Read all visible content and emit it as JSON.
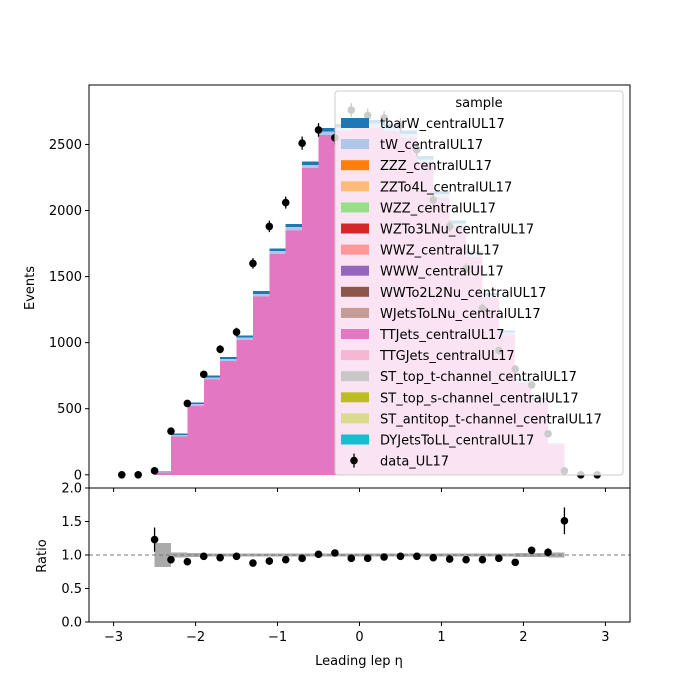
{
  "chart_data": {
    "type": "bar",
    "bin_edges": [
      -2.5,
      -2.3,
      -2.1,
      -1.9,
      -1.7,
      -1.5,
      -1.3,
      -1.1,
      -0.9,
      -0.7,
      -0.5,
      -0.3,
      -0.1,
      0.1,
      0.3,
      0.5,
      0.7,
      0.9,
      1.1,
      1.3,
      1.5,
      1.7,
      1.9,
      2.1,
      2.3,
      2.5
    ],
    "series": [
      {
        "name": "DYJetsToLL_centralUL17",
        "color": "#17becf",
        "values": [
          0,
          0,
          0,
          0,
          0,
          0,
          0,
          0,
          0,
          0,
          0,
          0,
          0,
          0,
          0,
          0,
          0,
          0,
          0,
          0,
          0,
          0,
          0,
          0,
          0
        ]
      },
      {
        "name": "ST_antitop_t-channel_centralUL17",
        "color": "#dbdb8d",
        "values": [
          0,
          0,
          0,
          0,
          0,
          0,
          0,
          0,
          0,
          0,
          0,
          0,
          0,
          0,
          0,
          0,
          0,
          0,
          0,
          0,
          0,
          0,
          0,
          0,
          0
        ]
      },
      {
        "name": "ST_top_s-channel_centralUL17",
        "color": "#bcbd22",
        "values": [
          0,
          0,
          0,
          0,
          0,
          0,
          0,
          0,
          0,
          0,
          0,
          0,
          0,
          0,
          0,
          0,
          0,
          0,
          0,
          0,
          0,
          0,
          0,
          0,
          0
        ]
      },
      {
        "name": "ST_top_t-channel_centralUL17",
        "color": "#c7c7c7",
        "values": [
          0,
          0,
          0,
          0,
          0,
          0,
          0,
          0,
          0,
          0,
          0,
          0,
          0,
          0,
          0,
          0,
          0,
          0,
          0,
          0,
          0,
          0,
          0,
          0,
          0
        ]
      },
      {
        "name": "TTGJets_centralUL17",
        "color": "#f7b6d2",
        "values": [
          0,
          0,
          0,
          0,
          0,
          0,
          0,
          0,
          0,
          0,
          0,
          0,
          0,
          0,
          0,
          0,
          0,
          0,
          0,
          0,
          0,
          0,
          0,
          0,
          0
        ]
      },
      {
        "name": "TTJets_centralUL17",
        "color": "#e377c2",
        "values": [
          20,
          290,
          520,
          720,
          860,
          1020,
          1350,
          1670,
          1850,
          2320,
          2570,
          2600,
          2640,
          2630,
          2600,
          2550,
          2360,
          2100,
          1880,
          1650,
          1340,
          1060,
          700,
          560,
          230
        ]
      },
      {
        "name": "WJetsToLNu_centralUL17",
        "color": "#c49c94",
        "values": [
          0,
          0,
          0,
          0,
          0,
          0,
          0,
          0,
          0,
          0,
          0,
          0,
          0,
          0,
          0,
          0,
          0,
          0,
          0,
          0,
          0,
          0,
          0,
          0,
          0
        ]
      },
      {
        "name": "WWTo2L2Nu_centralUL17",
        "color": "#8c564b",
        "values": [
          0,
          0,
          0,
          0,
          0,
          0,
          0,
          0,
          0,
          0,
          0,
          0,
          0,
          0,
          0,
          0,
          0,
          0,
          0,
          0,
          0,
          0,
          0,
          0,
          0
        ]
      },
      {
        "name": "WWW_centralUL17",
        "color": "#9467bd",
        "values": [
          0,
          0,
          0,
          0,
          0,
          0,
          0,
          0,
          0,
          0,
          0,
          0,
          0,
          0,
          0,
          0,
          0,
          0,
          0,
          0,
          0,
          0,
          0,
          0,
          0
        ]
      },
      {
        "name": "WWZ_centralUL17",
        "color": "#ff9896",
        "values": [
          0,
          0,
          0,
          0,
          0,
          0,
          0,
          0,
          0,
          0,
          0,
          0,
          0,
          0,
          0,
          0,
          0,
          0,
          0,
          0,
          0,
          0,
          0,
          0,
          0
        ]
      },
      {
        "name": "WZTo3LNu_centralUL17",
        "color": "#d62728",
        "values": [
          0,
          0,
          0,
          0,
          0,
          0,
          0,
          0,
          0,
          0,
          0,
          0,
          0,
          0,
          0,
          0,
          0,
          0,
          0,
          0,
          0,
          0,
          0,
          0,
          0
        ]
      },
      {
        "name": "WZZ_centralUL17",
        "color": "#98df8a",
        "values": [
          0,
          0,
          0,
          0,
          0,
          0,
          0,
          0,
          0,
          0,
          0,
          0,
          0,
          0,
          0,
          0,
          0,
          0,
          0,
          0,
          0,
          0,
          0,
          0,
          0
        ]
      },
      {
        "name": "ZZTo4L_centralUL17",
        "color": "#ffbb78",
        "values": [
          0,
          0,
          0,
          0,
          0,
          0,
          0,
          0,
          0,
          0,
          0,
          0,
          0,
          0,
          0,
          0,
          0,
          0,
          0,
          0,
          0,
          0,
          0,
          0,
          0
        ]
      },
      {
        "name": "ZZZ_centralUL17",
        "color": "#ff7f0e",
        "values": [
          0,
          0,
          0,
          0,
          0,
          0,
          0,
          0,
          0,
          0,
          0,
          0,
          0,
          0,
          0,
          0,
          0,
          0,
          0,
          0,
          0,
          0,
          0,
          0,
          0
        ]
      },
      {
        "name": "tW_centralUL17",
        "color": "#aec7e8",
        "values": [
          2,
          12,
          14,
          16,
          16,
          18,
          20,
          22,
          24,
          26,
          28,
          28,
          28,
          28,
          28,
          28,
          26,
          24,
          22,
          20,
          18,
          16,
          12,
          10,
          4
        ]
      },
      {
        "name": "tbarW_centralUL17",
        "color": "#1f77b4",
        "values": [
          3,
          12,
          14,
          16,
          16,
          18,
          20,
          22,
          24,
          26,
          28,
          28,
          28,
          28,
          28,
          28,
          26,
          24,
          22,
          20,
          18,
          16,
          12,
          10,
          4
        ]
      }
    ],
    "data": {
      "name": "data_UL17",
      "color": "#000000",
      "x": [
        -2.9,
        -2.7,
        -2.5,
        -2.3,
        -2.1,
        -1.9,
        -1.7,
        -1.5,
        -1.3,
        -1.1,
        -0.9,
        -0.7,
        -0.5,
        -0.3,
        -0.1,
        0.1,
        0.3,
        0.5,
        0.7,
        0.9,
        1.1,
        1.3,
        1.5,
        1.7,
        1.9,
        2.1,
        2.3,
        2.5,
        2.7,
        2.9
      ],
      "y": [
        0,
        0,
        30,
        330,
        540,
        760,
        950,
        1080,
        1600,
        1880,
        2060,
        2510,
        2610,
        2550,
        2760,
        2720,
        2700,
        2650,
        2460,
        2080,
        1880,
        1560,
        1260,
        940,
        800,
        680,
        310,
        30,
        0,
        0
      ]
    },
    "ratio": {
      "ylabel": "Ratio",
      "ylim": [
        0.0,
        2.0
      ],
      "yticks": [
        0.0,
        0.5,
        1.0,
        1.5,
        2.0
      ],
      "reference": 1.0,
      "x": [
        -2.5,
        -2.3,
        -2.1,
        -1.9,
        -1.7,
        -1.5,
        -1.3,
        -1.1,
        -0.9,
        -0.7,
        -0.5,
        -0.3,
        -0.1,
        0.1,
        0.3,
        0.5,
        0.7,
        0.9,
        1.1,
        1.3,
        1.5,
        1.7,
        1.9,
        2.1,
        2.3,
        2.5
      ],
      "y": [
        1.23,
        0.93,
        0.9,
        0.98,
        0.96,
        0.98,
        0.88,
        0.91,
        0.93,
        0.95,
        1.01,
        1.03,
        0.95,
        0.95,
        0.97,
        0.98,
        0.98,
        0.96,
        0.94,
        0.93,
        0.93,
        0.95,
        0.89,
        1.07,
        1.04,
        1.51
      ],
      "yerr": [
        0.18,
        0.05,
        0.04,
        0.03,
        0.03,
        0.03,
        0.02,
        0.02,
        0.02,
        0.02,
        0.02,
        0.02,
        0.02,
        0.02,
        0.02,
        0.02,
        0.02,
        0.02,
        0.02,
        0.02,
        0.02,
        0.03,
        0.03,
        0.04,
        0.06,
        0.2
      ],
      "band_err": [
        0.18,
        0.04,
        0.03,
        0.02,
        0.02,
        0.02,
        0.02,
        0.02,
        0.02,
        0.02,
        0.02,
        0.02,
        0.02,
        0.02,
        0.02,
        0.02,
        0.02,
        0.02,
        0.02,
        0.02,
        0.02,
        0.02,
        0.03,
        0.03,
        0.04
      ]
    },
    "xlabel": "Leading lep η",
    "ylabel": "Events",
    "xlim": [
      -3.3,
      3.3
    ],
    "ylim": [
      -100,
      2950
    ],
    "xticks": [
      -3,
      -2,
      -1,
      0,
      1,
      2,
      3
    ],
    "yticks": [
      0,
      500,
      1000,
      1500,
      2000,
      2500
    ],
    "ratio_yticks": [
      0.0,
      0.5,
      1.0,
      1.5,
      2.0
    ],
    "legend_title": "sample",
    "legend_placement": "upper right",
    "legend_order": [
      "tbarW_centralUL17",
      "tW_centralUL17",
      "ZZZ_centralUL17",
      "ZZTo4L_centralUL17",
      "WZZ_centralUL17",
      "WZTo3LNu_centralUL17",
      "WWZ_centralUL17",
      "WWW_centralUL17",
      "WWTo2L2Nu_centralUL17",
      "WJetsToLNu_centralUL17",
      "TTJets_centralUL17",
      "TTGJets_centralUL17",
      "ST_top_t-channel_centralUL17",
      "ST_top_s-channel_centralUL17",
      "ST_antitop_t-channel_centralUL17",
      "DYJetsToLL_centralUL17",
      "data_UL17"
    ]
  }
}
